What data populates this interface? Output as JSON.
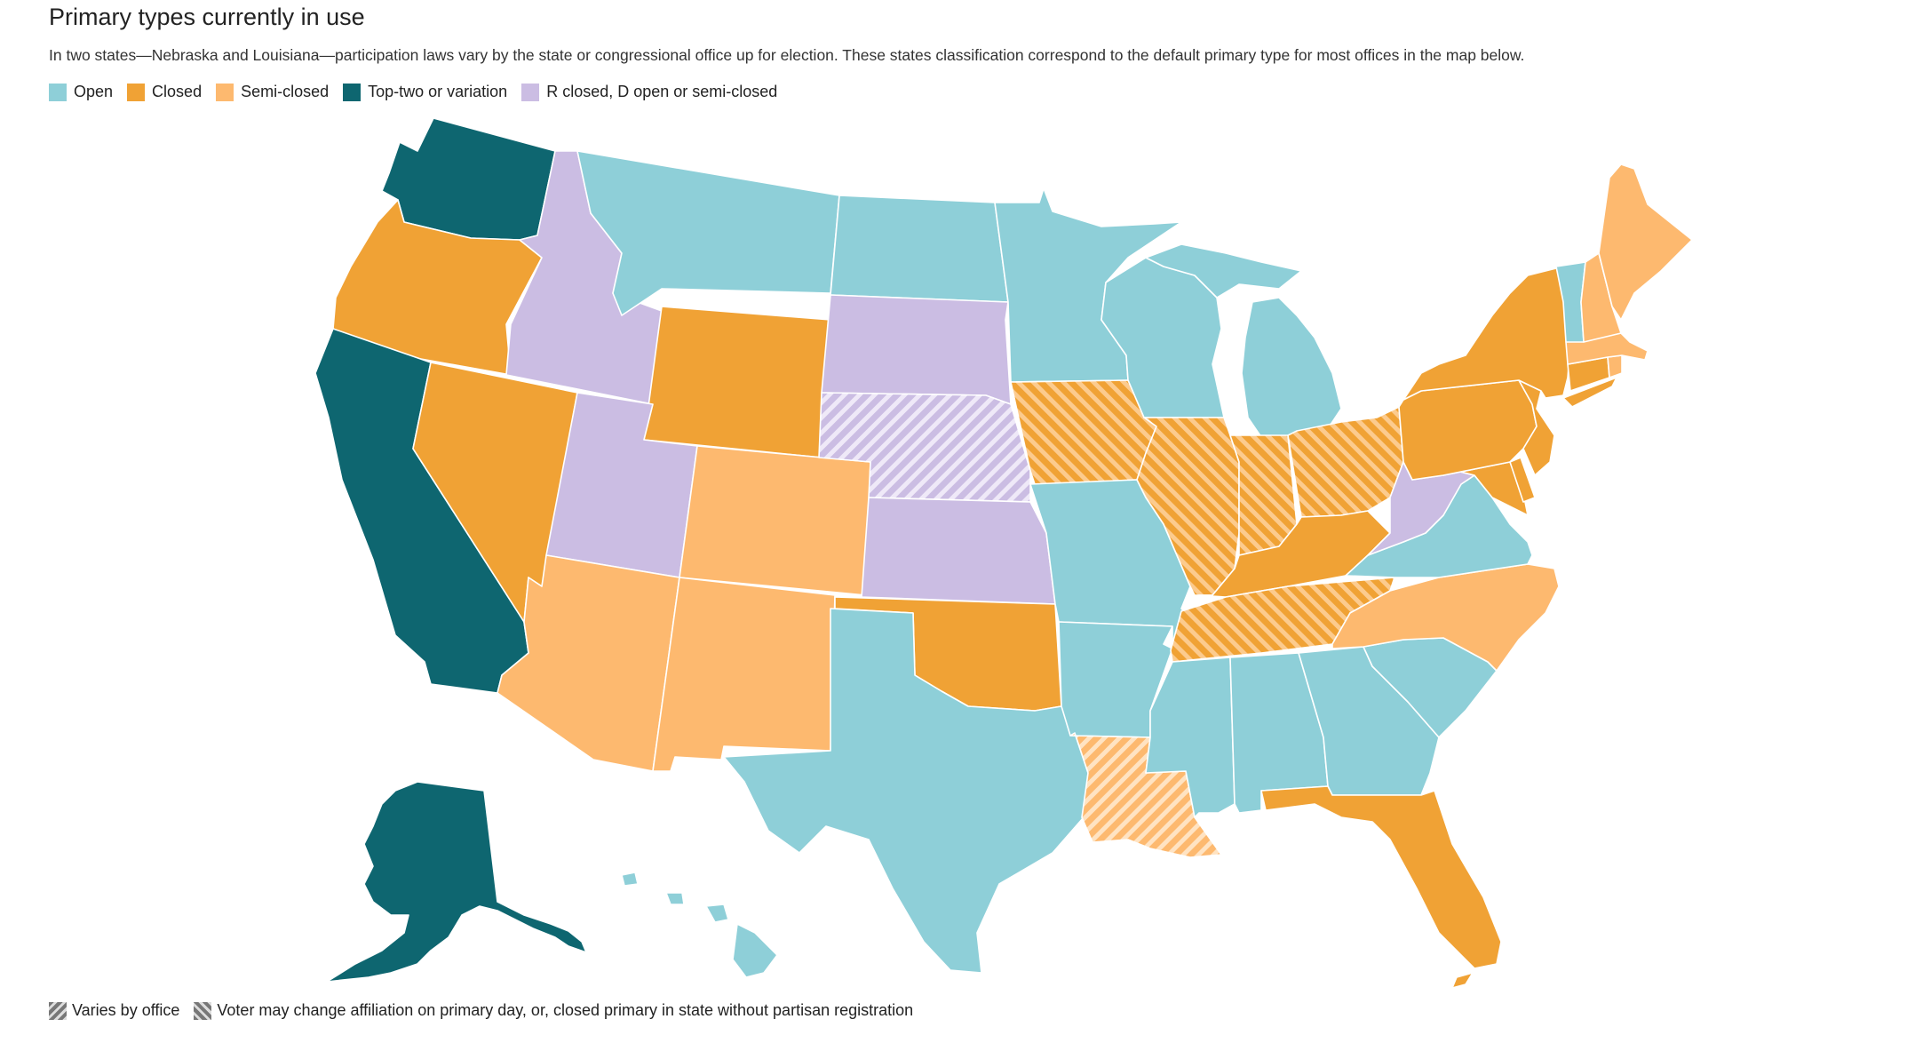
{
  "title": "Primary types currently in use",
  "subtitle": "In two states—Nebraska and Louisiana—participation laws vary by the state or congressional office up for election. These states classification correspond to the default primary type for most offices in the map below.",
  "colors": {
    "open": "#8ECFD8",
    "closed": "#F0A235",
    "semi_closed": "#FDB96F",
    "top_two": "#0E6670",
    "r_closed": "#CBBDE3"
  },
  "legend": [
    {
      "key": "open",
      "label": "Open",
      "color": "#8ECFD8"
    },
    {
      "key": "closed",
      "label": "Closed",
      "color": "#F0A235"
    },
    {
      "key": "semi_closed",
      "label": "Semi-closed",
      "color": "#FDB96F"
    },
    {
      "key": "top_two",
      "label": "Top-two or variation",
      "color": "#0E6670"
    },
    {
      "key": "r_closed",
      "label": "R closed, D open or semi-closed",
      "color": "#CBBDE3"
    }
  ],
  "pattern_legend": {
    "varies": "Varies by office",
    "voter_change": "Voter may change affiliation on primary day, or, closed primary in state without partisan registration"
  },
  "states": [
    {
      "name": "Washington",
      "type": "top_two"
    },
    {
      "name": "Oregon",
      "type": "closed"
    },
    {
      "name": "California",
      "type": "top_two"
    },
    {
      "name": "Nevada",
      "type": "closed"
    },
    {
      "name": "Idaho",
      "type": "r_closed"
    },
    {
      "name": "Montana",
      "type": "open"
    },
    {
      "name": "Wyoming",
      "type": "closed"
    },
    {
      "name": "Utah",
      "type": "r_closed"
    },
    {
      "name": "Arizona",
      "type": "semi_closed"
    },
    {
      "name": "Colorado",
      "type": "semi_closed"
    },
    {
      "name": "New Mexico",
      "type": "semi_closed"
    },
    {
      "name": "North Dakota",
      "type": "open"
    },
    {
      "name": "South Dakota",
      "type": "r_closed"
    },
    {
      "name": "Nebraska",
      "type": "r_closed",
      "pattern": "varies"
    },
    {
      "name": "Kansas",
      "type": "r_closed"
    },
    {
      "name": "Oklahoma",
      "type": "closed"
    },
    {
      "name": "Texas",
      "type": "open"
    },
    {
      "name": "Minnesota",
      "type": "open"
    },
    {
      "name": "Iowa",
      "type": "closed",
      "pattern": "voter_change"
    },
    {
      "name": "Missouri",
      "type": "open"
    },
    {
      "name": "Arkansas",
      "type": "open"
    },
    {
      "name": "Louisiana",
      "type": "semi_closed",
      "pattern": "varies"
    },
    {
      "name": "Wisconsin",
      "type": "open"
    },
    {
      "name": "Illinois",
      "type": "closed",
      "pattern": "voter_change"
    },
    {
      "name": "Michigan",
      "type": "open"
    },
    {
      "name": "Indiana",
      "type": "closed",
      "pattern": "voter_change"
    },
    {
      "name": "Ohio",
      "type": "closed",
      "pattern": "voter_change"
    },
    {
      "name": "Kentucky",
      "type": "closed"
    },
    {
      "name": "Tennessee",
      "type": "closed",
      "pattern": "voter_change"
    },
    {
      "name": "Mississippi",
      "type": "open"
    },
    {
      "name": "Alabama",
      "type": "open"
    },
    {
      "name": "Georgia",
      "type": "open"
    },
    {
      "name": "Florida",
      "type": "closed"
    },
    {
      "name": "South Carolina",
      "type": "open"
    },
    {
      "name": "North Carolina",
      "type": "semi_closed"
    },
    {
      "name": "Virginia",
      "type": "open"
    },
    {
      "name": "West Virginia",
      "type": "r_closed"
    },
    {
      "name": "Maryland",
      "type": "closed"
    },
    {
      "name": "Delaware",
      "type": "closed"
    },
    {
      "name": "New Jersey",
      "type": "closed"
    },
    {
      "name": "Pennsylvania",
      "type": "closed"
    },
    {
      "name": "New York",
      "type": "closed"
    },
    {
      "name": "Connecticut",
      "type": "closed"
    },
    {
      "name": "Rhode Island",
      "type": "semi_closed"
    },
    {
      "name": "Massachusetts",
      "type": "semi_closed"
    },
    {
      "name": "Vermont",
      "type": "open"
    },
    {
      "name": "New Hampshire",
      "type": "semi_closed"
    },
    {
      "name": "Maine",
      "type": "semi_closed"
    },
    {
      "name": "Alaska",
      "type": "top_two"
    },
    {
      "name": "Hawaii",
      "type": "open"
    }
  ]
}
